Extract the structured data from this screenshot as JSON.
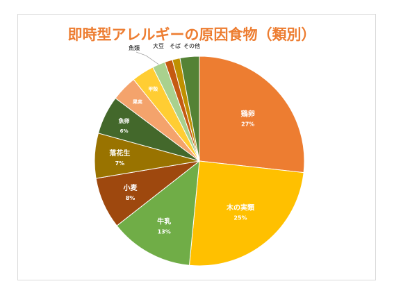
{
  "chart_data": {
    "type": "pie",
    "title": "即時型アレルギーの原因食物（類別）",
    "slices": [
      {
        "name": "鶏卵",
        "value": 27,
        "pct_label": "27%",
        "color": "#ed7d31"
      },
      {
        "name": "木の実類",
        "value": 25,
        "pct_label": "25%",
        "color": "#ffc000"
      },
      {
        "name": "牛乳",
        "value": 13,
        "pct_label": "13%",
        "color": "#70ad47"
      },
      {
        "name": "小麦",
        "value": 8,
        "pct_label": "8%",
        "color": "#9e480e"
      },
      {
        "name": "落花生",
        "value": 7,
        "pct_label": "7%",
        "color": "#997300"
      },
      {
        "name": "魚卵",
        "value": 6,
        "pct_label": "6%",
        "color": "#43682b"
      },
      {
        "name": "果実",
        "value": 4,
        "pct_label": "",
        "color": "#f4a36c"
      },
      {
        "name": "甲殻",
        "value": 3.5,
        "pct_label": "",
        "color": "#ffcd33"
      },
      {
        "name": "魚類",
        "value": 2,
        "pct_label": "",
        "color": "#a9d18e"
      },
      {
        "name": "大豆",
        "value": 1.2,
        "pct_label": "",
        "color": "#c55a11"
      },
      {
        "name": "そば",
        "value": 1.2,
        "pct_label": "",
        "color": "#bf9000"
      },
      {
        "name": "その他",
        "value": 3,
        "pct_label": "",
        "color": "#548235"
      }
    ]
  }
}
